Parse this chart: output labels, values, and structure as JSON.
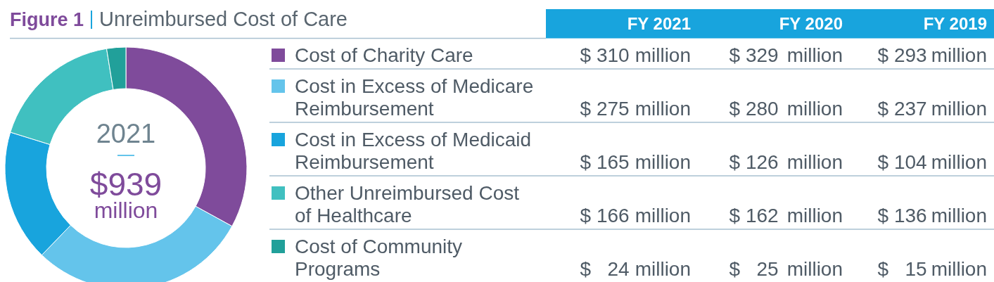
{
  "chart_data": [
    {
      "type": "donut",
      "title": "Figure 1",
      "subtitle": "Unreimbursed Cost of Care",
      "categories": [
        "Cost of Charity Care",
        "Cost in Excess of Medicare Reimbursement",
        "Cost in Excess of Medicaid Reimbursement",
        "Other Unreimbursed Cost of Healthcare",
        "Cost of Community Programs"
      ],
      "colors": [
        "#7f4b9b",
        "#64c4eb",
        "#18a4dd",
        "#40c0c0",
        "#21a09a"
      ],
      "series": [
        {
          "name": "FY 2021",
          "values": [
            310,
            275,
            165,
            166,
            24
          ],
          "value_labels": [
            "$ 310 million",
            "$ 275 million",
            "$ 165 million",
            "$ 166 million",
            "$ 24 million"
          ]
        }
      ],
      "annotations": [
        "2021",
        "$939",
        "million"
      ],
      "legend": "right"
    },
    {
      "type": "other",
      "title": "FY 2020",
      "values": [
        329,
        280,
        126,
        162,
        25
      ],
      "value_labels": [
        "$ 329 million",
        "$ 280 million",
        "$ 126 million",
        "$ 162 million",
        "$ 25 million"
      ]
    },
    {
      "type": "other",
      "title": "FY 2019",
      "values": [
        293,
        237,
        104,
        136,
        15
      ],
      "value_labels": [
        "$ 293 million",
        "$ 237 million",
        "$ 104 million",
        "$ 136 million",
        "$ 15 million"
      ]
    }
  ]
}
